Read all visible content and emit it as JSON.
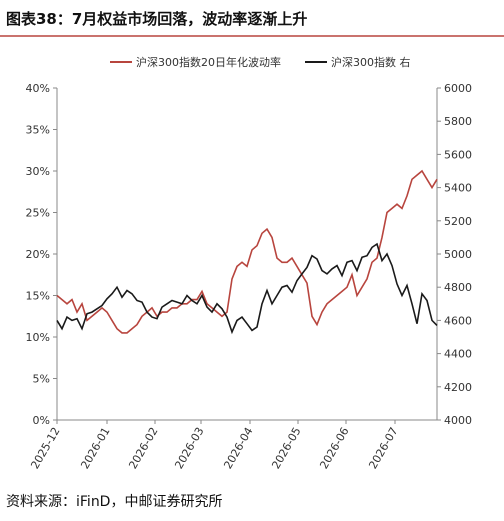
{
  "chart_data": {
    "type": "line",
    "title": "图表38：7月权益市场回落，波动率逐渐上升",
    "source": "资料来源：iFinD，中邮证券研究所",
    "legend": "top",
    "xlim": [
      0,
      76
    ],
    "xticks": [
      {
        "value": 0,
        "label": "2025-12"
      },
      {
        "value": 10,
        "label": "2026-01"
      },
      {
        "value": 19.6,
        "label": "2026-02"
      },
      {
        "value": 28.8,
        "label": "2026-03"
      },
      {
        "value": 38.6,
        "label": "2026-04"
      },
      {
        "value": 48.2,
        "label": "2026-05"
      },
      {
        "value": 57.8,
        "label": "2026-06"
      },
      {
        "value": 67.6,
        "label": "2026-07"
      }
    ],
    "ylim": [
      0,
      40
    ],
    "yticks": [
      {
        "value": 0,
        "label": "0%"
      },
      {
        "value": 5,
        "label": "5%"
      },
      {
        "value": 10,
        "label": "10%"
      },
      {
        "value": 15,
        "label": "15%"
      },
      {
        "value": 20,
        "label": "20%"
      },
      {
        "value": 25,
        "label": "25%"
      },
      {
        "value": 30,
        "label": "30%"
      },
      {
        "value": 35,
        "label": "35%"
      },
      {
        "value": 40,
        "label": "40%"
      }
    ],
    "y2lim": [
      4000,
      6000
    ],
    "y2ticks": [
      4000,
      4200,
      4400,
      4600,
      4800,
      5000,
      5200,
      5400,
      5600,
      5800,
      6000
    ],
    "series": [
      {
        "name": "沪深300指数20日年化波动率",
        "color": "#b8453e",
        "values": [
          15,
          14.5,
          14,
          14.5,
          13,
          14,
          12,
          12.5,
          13,
          13.5,
          13,
          12,
          11,
          10.5,
          10.5,
          11,
          11.5,
          12.5,
          13,
          13.5,
          12.5,
          13,
          13,
          13.5,
          13.5,
          14,
          14,
          14.5,
          14.5,
          15.5,
          14,
          13.5,
          13,
          12.5,
          13,
          17,
          18.5,
          19,
          18.5,
          20.5,
          21,
          22.5,
          23,
          22,
          19.5,
          19,
          19,
          19.5,
          18.5,
          17.5,
          16.5,
          12.5,
          11.5,
          13,
          14,
          14.5,
          15,
          15.5,
          16,
          17.5,
          15,
          16,
          17,
          19,
          19.5,
          22,
          25,
          25.5,
          26,
          25.5,
          27,
          29,
          29.5,
          30,
          29,
          28,
          29
        ]
      },
      {
        "name": "沪深300指数 右",
        "color": "#1a1a1a",
        "axis": "y2",
        "values": [
          4600,
          4550,
          4620,
          4600,
          4610,
          4550,
          4640,
          4650,
          4670,
          4690,
          4730,
          4760,
          4800,
          4740,
          4780,
          4760,
          4720,
          4710,
          4650,
          4620,
          4610,
          4680,
          4700,
          4720,
          4710,
          4700,
          4750,
          4720,
          4700,
          4750,
          4680,
          4650,
          4700,
          4670,
          4620,
          4530,
          4600,
          4620,
          4580,
          4540,
          4560,
          4700,
          4780,
          4700,
          4750,
          4800,
          4810,
          4770,
          4840,
          4880,
          4920,
          4990,
          4970,
          4900,
          4880,
          4910,
          4930,
          4870,
          4950,
          4960,
          4900,
          4980,
          4990,
          5040,
          5060,
          4960,
          5000,
          4930,
          4820,
          4750,
          4810,
          4700,
          4580,
          4760,
          4720,
          4600,
          4570
        ]
      }
    ]
  }
}
